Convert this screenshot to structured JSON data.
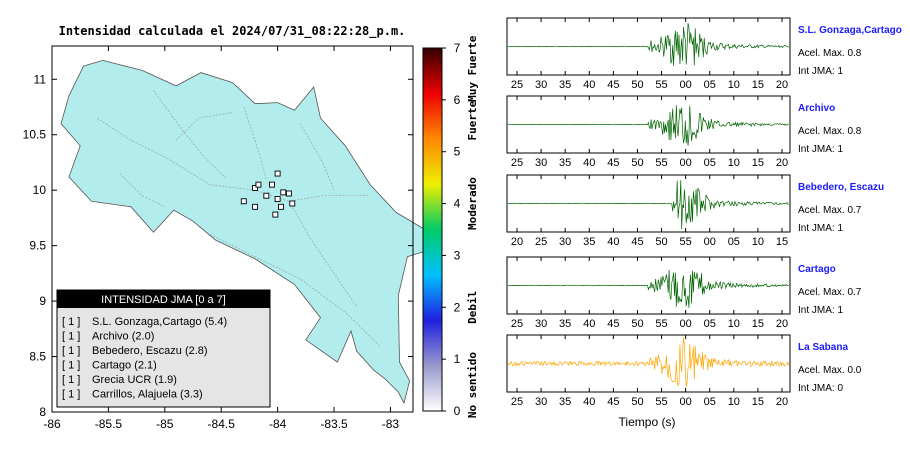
{
  "header": {
    "title": "Intensidad calculada el 2024/07/31_08:22:28_p.m."
  },
  "chart_data": [
    {
      "type": "map",
      "title": "Intensidad calculada el 2024/07/31_08:22:28_p.m.",
      "x_ticks": [
        "-86",
        "-85.5",
        "-85",
        "-84.5",
        "-84",
        "-83.5",
        "-83"
      ],
      "y_ticks": [
        "11",
        "10.5",
        "10",
        "9.5",
        "9",
        "8.5",
        "8"
      ],
      "xlim": [
        -86,
        -82.8
      ],
      "ylim": [
        8,
        11.3
      ],
      "fill_color": "#b2ecec",
      "grid": false
    },
    {
      "type": "colorbar",
      "ticks": [
        "0",
        "1",
        "2",
        "3",
        "4",
        "5",
        "6",
        "7"
      ],
      "range": [
        0,
        7
      ],
      "labels": [
        "No sentido",
        "Debil",
        "Moderado",
        "Fuerte",
        "Muy Fuerte"
      ],
      "colors": [
        "#ffffff",
        "#9999cc",
        "#2020e0",
        "#00c0ff",
        "#00cc66",
        "#eeee00",
        "#ff8800",
        "#ee0000",
        "#330000"
      ]
    },
    {
      "type": "table",
      "title": "INTENSIDAD JMA [0 a 7]",
      "rows": [
        {
          "intensity": "[ 1 ]",
          "station": "S.L. Gonzaga,Cartago (5.4)"
        },
        {
          "intensity": "[ 1 ]",
          "station": "Archivo (2.0)"
        },
        {
          "intensity": "[ 1 ]",
          "station": "Bebedero, Escazu (2.8)"
        },
        {
          "intensity": "[ 1 ]",
          "station": "Cartago (2.1)"
        },
        {
          "intensity": "[ 1 ]",
          "station": "Grecia UCR (1.9)"
        },
        {
          "intensity": "[ 1 ]",
          "station": "Carrillos, Alajuela (3.3)"
        }
      ]
    },
    {
      "type": "line",
      "name": "S.L. Gonzaga,Cartago",
      "color": "#006400",
      "x_ticks": [
        "25",
        "30",
        "35",
        "40",
        "45",
        "50",
        "55",
        "00",
        "05",
        "10",
        "15",
        "20"
      ],
      "onset_tick": "50",
      "peak_tick": "00",
      "pga": "Acel. Max. 0.8",
      "int": "Int JMA: 1"
    },
    {
      "type": "line",
      "name": "Archivo",
      "color": "#006400",
      "x_ticks": [
        "25",
        "30",
        "35",
        "40",
        "45",
        "50",
        "55",
        "00",
        "05",
        "10",
        "15",
        "20"
      ],
      "onset_tick": "50",
      "peak_tick": "00",
      "pga": "Acel. Max. 0.8",
      "int": "Int JMA: 1"
    },
    {
      "type": "line",
      "name": "Bebedero, Escazu",
      "color": "#006400",
      "x_ticks": [
        "20",
        "25",
        "30",
        "35",
        "40",
        "45",
        "50",
        "55",
        "00",
        "05",
        "10",
        "15"
      ],
      "onset_tick": "50",
      "peak_tick": "55",
      "pga": "Acel. Max. 0.7",
      "int": "Int JMA: 1"
    },
    {
      "type": "line",
      "name": "Cartago",
      "color": "#006400",
      "x_ticks": [
        "25",
        "30",
        "35",
        "40",
        "45",
        "50",
        "55",
        "00",
        "05",
        "10",
        "15",
        "20"
      ],
      "onset_tick": "50",
      "peak_tick": "00",
      "pga": "Acel. Max. 0.7",
      "int": "Int JMA: 1"
    },
    {
      "type": "line",
      "name": "La Sabana",
      "color": "#ffa500",
      "x_ticks": [
        "25",
        "30",
        "35",
        "40",
        "45",
        "50",
        "55",
        "00",
        "05",
        "10",
        "15",
        "20"
      ],
      "onset_tick": "50",
      "peak_tick": "00",
      "pga": "Acel. Max. 0.0",
      "int": "Int JMA: 0"
    }
  ],
  "xlabel": "Tiempo (s)"
}
